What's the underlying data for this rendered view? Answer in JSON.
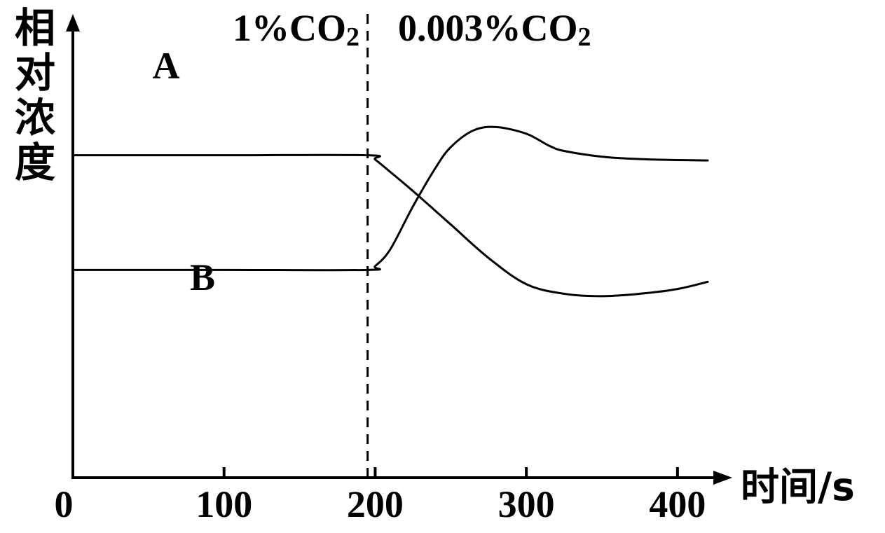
{
  "chart_data": {
    "type": "line",
    "ylabel": "相对浓度",
    "xlabel": "时间/s",
    "x_ticks": [
      0,
      100,
      200,
      300,
      400
    ],
    "xlim": [
      0,
      420
    ],
    "regions": [
      {
        "label_main": "1%CO",
        "label_sub": "2"
      },
      {
        "label_main": "0.003%CO",
        "label_sub": "2"
      }
    ],
    "divider_x": 195,
    "series": [
      {
        "name": "A",
        "points": [
          [
            0,
            0.675
          ],
          [
            100,
            0.675
          ],
          [
            195,
            0.675
          ],
          [
            200,
            0.666
          ],
          [
            210,
            0.64
          ],
          [
            225,
            0.6
          ],
          [
            250,
            0.53
          ],
          [
            275,
            0.46
          ],
          [
            300,
            0.405
          ],
          [
            325,
            0.385
          ],
          [
            350,
            0.38
          ],
          [
            375,
            0.385
          ],
          [
            400,
            0.395
          ],
          [
            420,
            0.41
          ]
        ]
      },
      {
        "name": "B",
        "points": [
          [
            0,
            0.435
          ],
          [
            100,
            0.435
          ],
          [
            195,
            0.435
          ],
          [
            200,
            0.443
          ],
          [
            210,
            0.478
          ],
          [
            225,
            0.568
          ],
          [
            240,
            0.649
          ],
          [
            250,
            0.692
          ],
          [
            265,
            0.727
          ],
          [
            280,
            0.734
          ],
          [
            300,
            0.72
          ],
          [
            315,
            0.695
          ],
          [
            325,
            0.684
          ],
          [
            350,
            0.672
          ],
          [
            375,
            0.667
          ],
          [
            400,
            0.665
          ],
          [
            420,
            0.664
          ]
        ]
      }
    ],
    "ylim": [
      0,
      1
    ]
  }
}
